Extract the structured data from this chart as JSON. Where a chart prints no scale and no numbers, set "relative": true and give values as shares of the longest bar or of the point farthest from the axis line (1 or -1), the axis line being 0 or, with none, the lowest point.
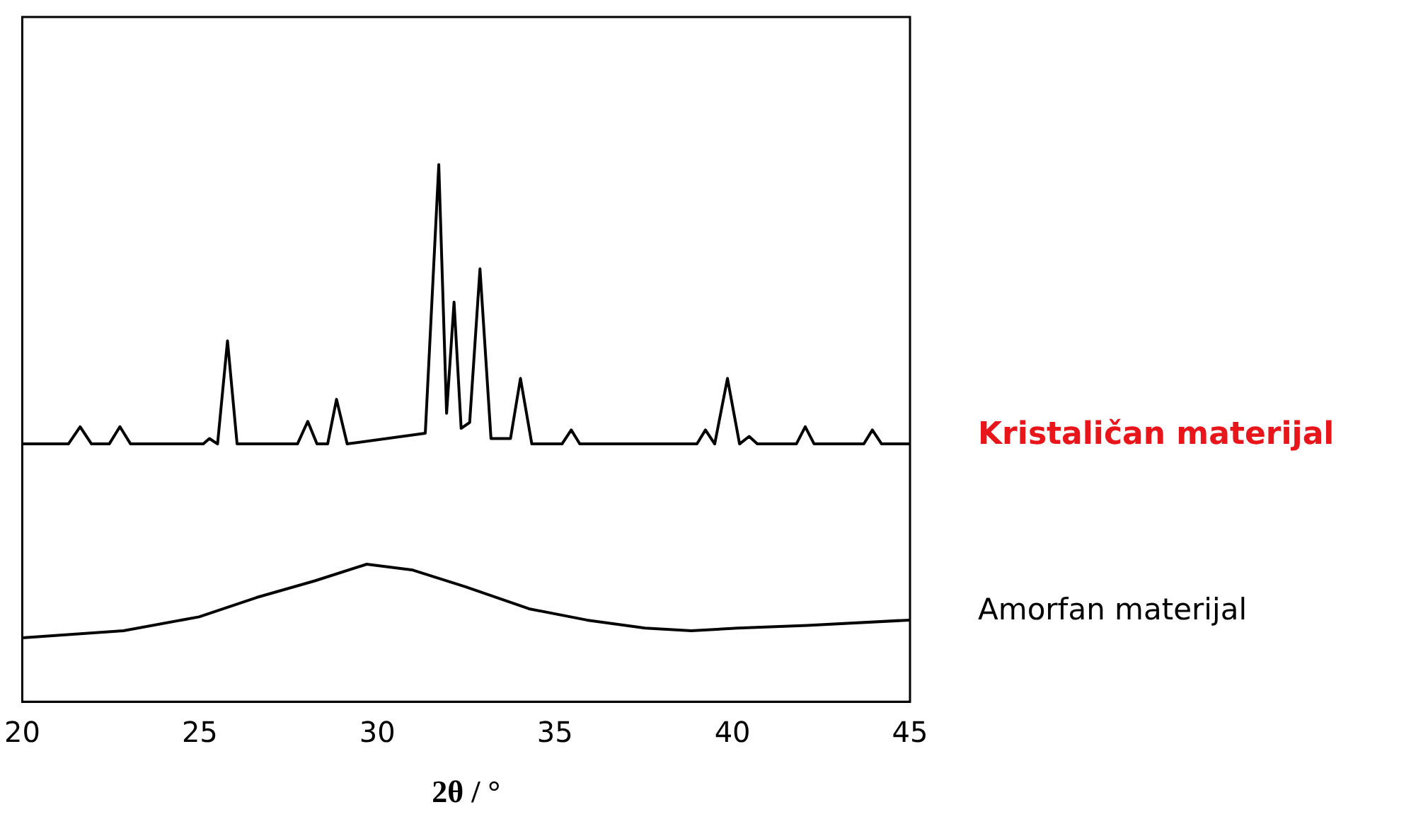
{
  "chart_data": {
    "type": "line",
    "relative": true,
    "xlabel": "2θ / °",
    "xlim": [
      20,
      45
    ],
    "xticks": [
      20,
      25,
      30,
      35,
      40,
      45
    ],
    "grid": false,
    "legend": false,
    "marker": "none",
    "line_style": "solid",
    "series": [
      {
        "name": "Kristaličan materijal",
        "color": "#000000",
        "x": [
          20,
          21.3,
          21.63,
          21.95,
          22.45,
          22.75,
          23.05,
          25.1,
          25.27,
          25.5,
          25.78,
          26.05,
          27.75,
          28.04,
          28.3,
          28.6,
          28.85,
          29.15,
          31.35,
          31.73,
          31.95,
          32.16,
          32.36,
          32.6,
          32.89,
          33.2,
          33.75,
          34.03,
          34.35,
          35.2,
          35.46,
          35.7,
          39.0,
          39.24,
          39.5,
          39.86,
          40.2,
          40.47,
          40.7,
          41.8,
          42.05,
          42.3,
          43.7,
          43.94,
          44.2,
          45
        ],
        "values": [
          0.48,
          0.48,
          0.512,
          0.48,
          0.48,
          0.512,
          0.48,
          0.48,
          0.49,
          0.48,
          0.672,
          0.48,
          0.48,
          0.522,
          0.48,
          0.48,
          0.563,
          0.48,
          0.5,
          1.0,
          0.537,
          0.744,
          0.509,
          0.52,
          0.806,
          0.49,
          0.49,
          0.602,
          0.48,
          0.48,
          0.506,
          0.48,
          0.48,
          0.506,
          0.48,
          0.602,
          0.48,
          0.494,
          0.48,
          0.48,
          0.512,
          0.48,
          0.48,
          0.506,
          0.48,
          0.48
        ]
      },
      {
        "name": "Amorfan materijal",
        "color": "#000000",
        "x": [
          20,
          22.85,
          24.98,
          26.6,
          28.24,
          29.7,
          31.0,
          32.48,
          34.27,
          35.9,
          37.54,
          38.84,
          40.15,
          42.1,
          45
        ],
        "values": [
          0.119,
          0.132,
          0.158,
          0.194,
          0.225,
          0.256,
          0.245,
          0.214,
          0.173,
          0.152,
          0.137,
          0.132,
          0.137,
          0.142,
          0.152
        ]
      }
    ]
  }
}
